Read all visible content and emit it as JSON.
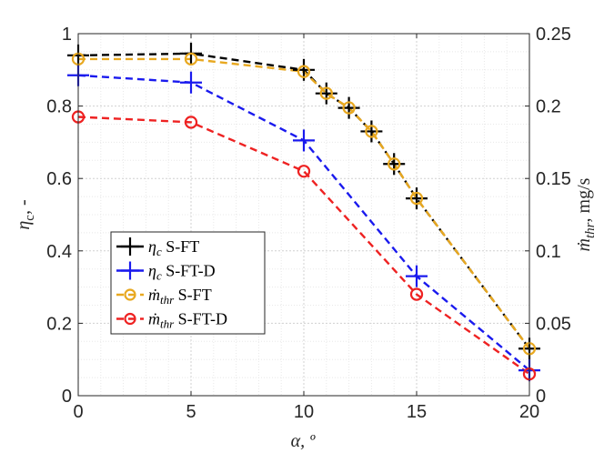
{
  "chart_data": {
    "type": "line",
    "title": "",
    "xlabel": "α, º",
    "ylabel_left": "ηc, -",
    "ylabel_right": "ṁthr, mg/s",
    "xlim": [
      0,
      20
    ],
    "ylim_left": [
      0,
      1
    ],
    "ylim_right": [
      0,
      0.25
    ],
    "x_ticks": [
      0,
      5,
      10,
      15,
      20
    ],
    "x_tick_labels": [
      "0",
      "5",
      "10",
      "15",
      "20"
    ],
    "y_left_ticks": [
      0,
      0.2,
      0.4,
      0.6,
      0.8,
      1
    ],
    "y_left_tick_labels": [
      "0",
      "0.2",
      "0.4",
      "0.6",
      "0.8",
      "1"
    ],
    "y_right_ticks": [
      0,
      0.05,
      0.1,
      0.15,
      0.2,
      0.25
    ],
    "y_right_tick_labels": [
      "0",
      "0.05",
      "0.1",
      "0.15",
      "0.2",
      "0.25"
    ],
    "grid": true,
    "legend_position": "center-left",
    "series": [
      {
        "name": "ηc S-FT",
        "legend_main": "η",
        "legend_sub": "c",
        "legend_suffix": " S-FT",
        "axis": "left",
        "color": "#000000",
        "marker": "plus",
        "x": [
          0,
          5,
          10,
          11,
          12,
          13,
          14,
          15,
          20
        ],
        "y": [
          0.94,
          0.945,
          0.9,
          0.835,
          0.795,
          0.73,
          0.64,
          0.545,
          0.13
        ]
      },
      {
        "name": "ηc S-FT-D",
        "legend_main": "η",
        "legend_sub": "c",
        "legend_suffix": " S-FT-D",
        "axis": "left",
        "color": "#1a1aee",
        "marker": "plus",
        "x": [
          0,
          5,
          10,
          15,
          20
        ],
        "y": [
          0.885,
          0.865,
          0.705,
          0.33,
          0.07
        ]
      },
      {
        "name": "ṁthr S-FT",
        "legend_main": "ṁ",
        "legend_sub": "thr",
        "legend_suffix": " S-FT",
        "axis": "right",
        "color": "#e8a820",
        "marker": "circle",
        "x": [
          0,
          5,
          10,
          11,
          12,
          13,
          14,
          15,
          20
        ],
        "y": [
          0.2325,
          0.2325,
          0.2238,
          0.2088,
          0.1988,
          0.1825,
          0.16,
          0.1363,
          0.0325
        ]
      },
      {
        "name": "ṁthr S-FT-D",
        "legend_main": "ṁ",
        "legend_sub": "thr",
        "legend_suffix": " S-FT-D",
        "axis": "right",
        "color": "#ee2222",
        "marker": "circle",
        "x": [
          0,
          5,
          10,
          15,
          20
        ],
        "y": [
          0.1925,
          0.1888,
          0.155,
          0.07,
          0.015
        ]
      }
    ]
  }
}
